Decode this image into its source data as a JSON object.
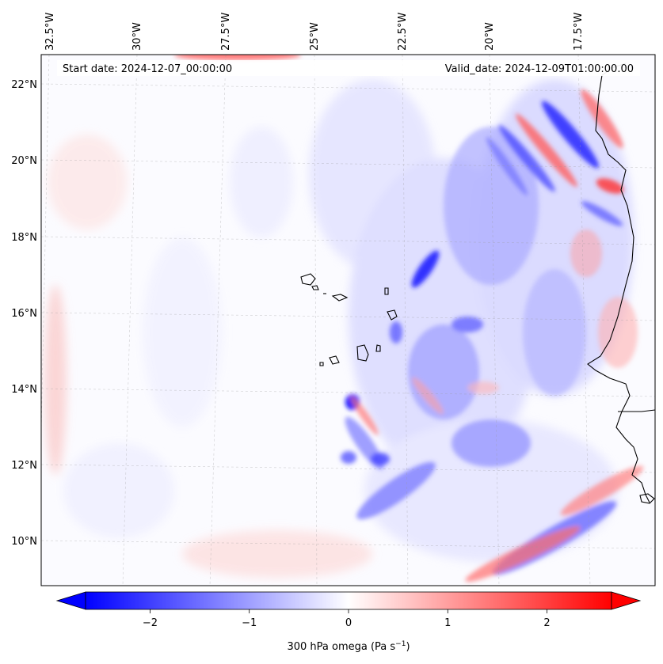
{
  "map": {
    "start_label": "Start date: 2024-12-07_00:00:00",
    "valid_label": "Valid_date: 2024-12-09T01:00:00.00",
    "lon_labels": [
      "32.5°W",
      "30°W",
      "27.5°W",
      "25°W",
      "22.5°W",
      "20°W",
      "17.5°W"
    ],
    "lat_labels": [
      "22°N",
      "20°N",
      "18°N",
      "16°N",
      "14°N",
      "12°N",
      "10°N"
    ]
  },
  "colorbar": {
    "ticks": [
      "−2",
      "−1",
      "0",
      "1",
      "2"
    ],
    "label_main": "300 hPa omega (Pa s",
    "label_sup": "−1",
    "label_end": ")",
    "range": [
      -2.65,
      2.65
    ],
    "tick_values": [
      -2,
      -1,
      0,
      1,
      2
    ],
    "low_color": "#0000ff",
    "mid_color": "#ffffff",
    "high_color": "#ff0000"
  }
}
